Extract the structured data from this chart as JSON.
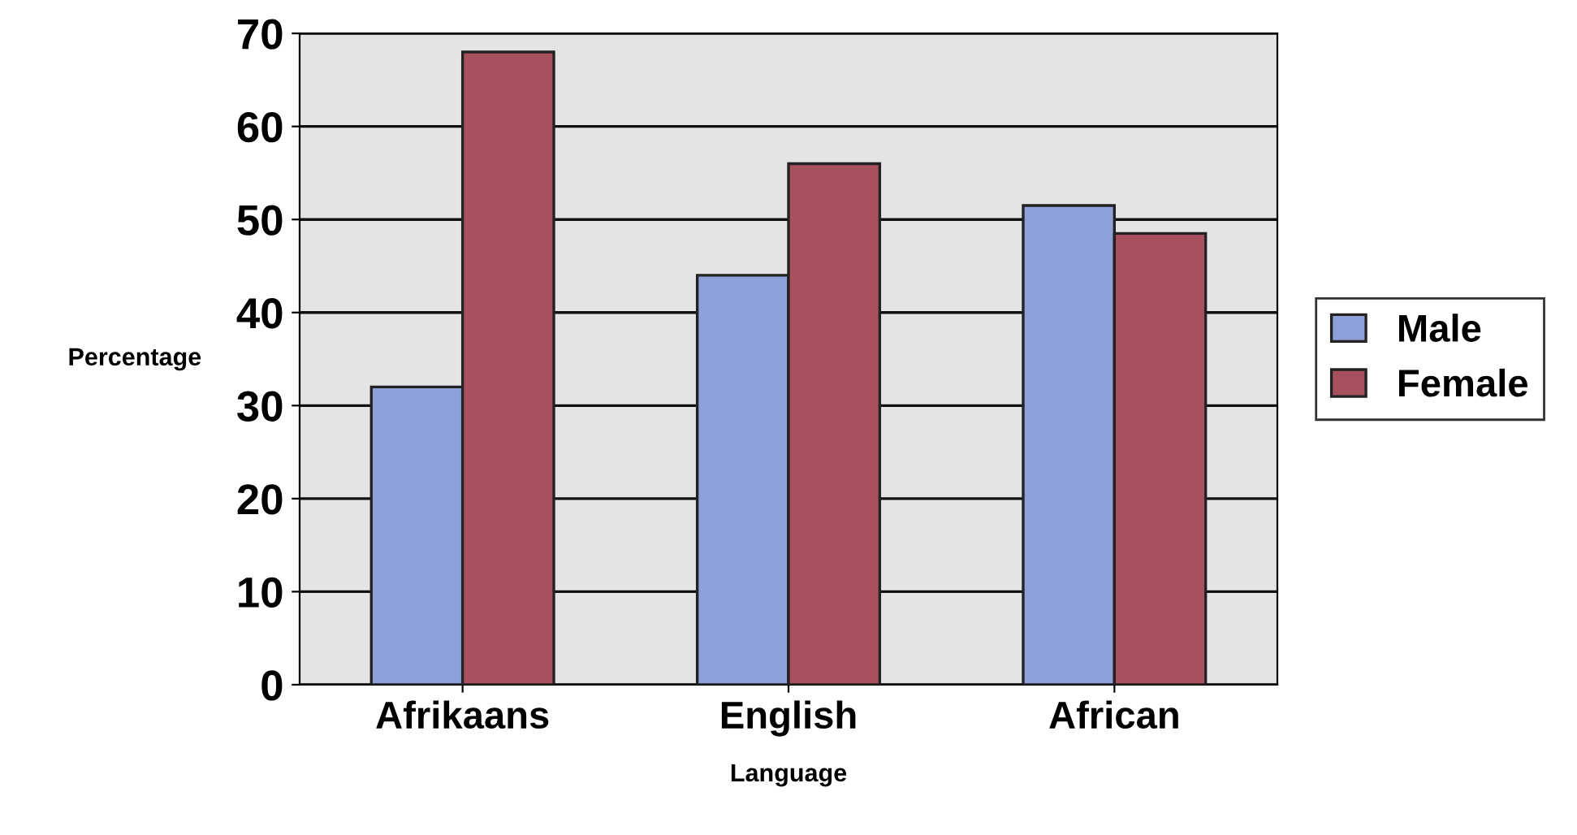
{
  "chart_data": {
    "type": "bar",
    "xlabel": "Language",
    "ylabel": "Percentage",
    "categories": [
      "Afrikaans",
      "English",
      "African"
    ],
    "series": [
      {
        "name": "Male",
        "color": "#8ea0d8",
        "values": [
          32,
          44,
          51.5
        ]
      },
      {
        "name": "Female",
        "color": "#a8505e",
        "values": [
          68,
          56,
          48.5
        ]
      }
    ],
    "ylim": [
      0,
      70
    ],
    "yticks": [
      0,
      10,
      20,
      30,
      40,
      50,
      60,
      70
    ],
    "grid": "y",
    "legend": "right"
  }
}
